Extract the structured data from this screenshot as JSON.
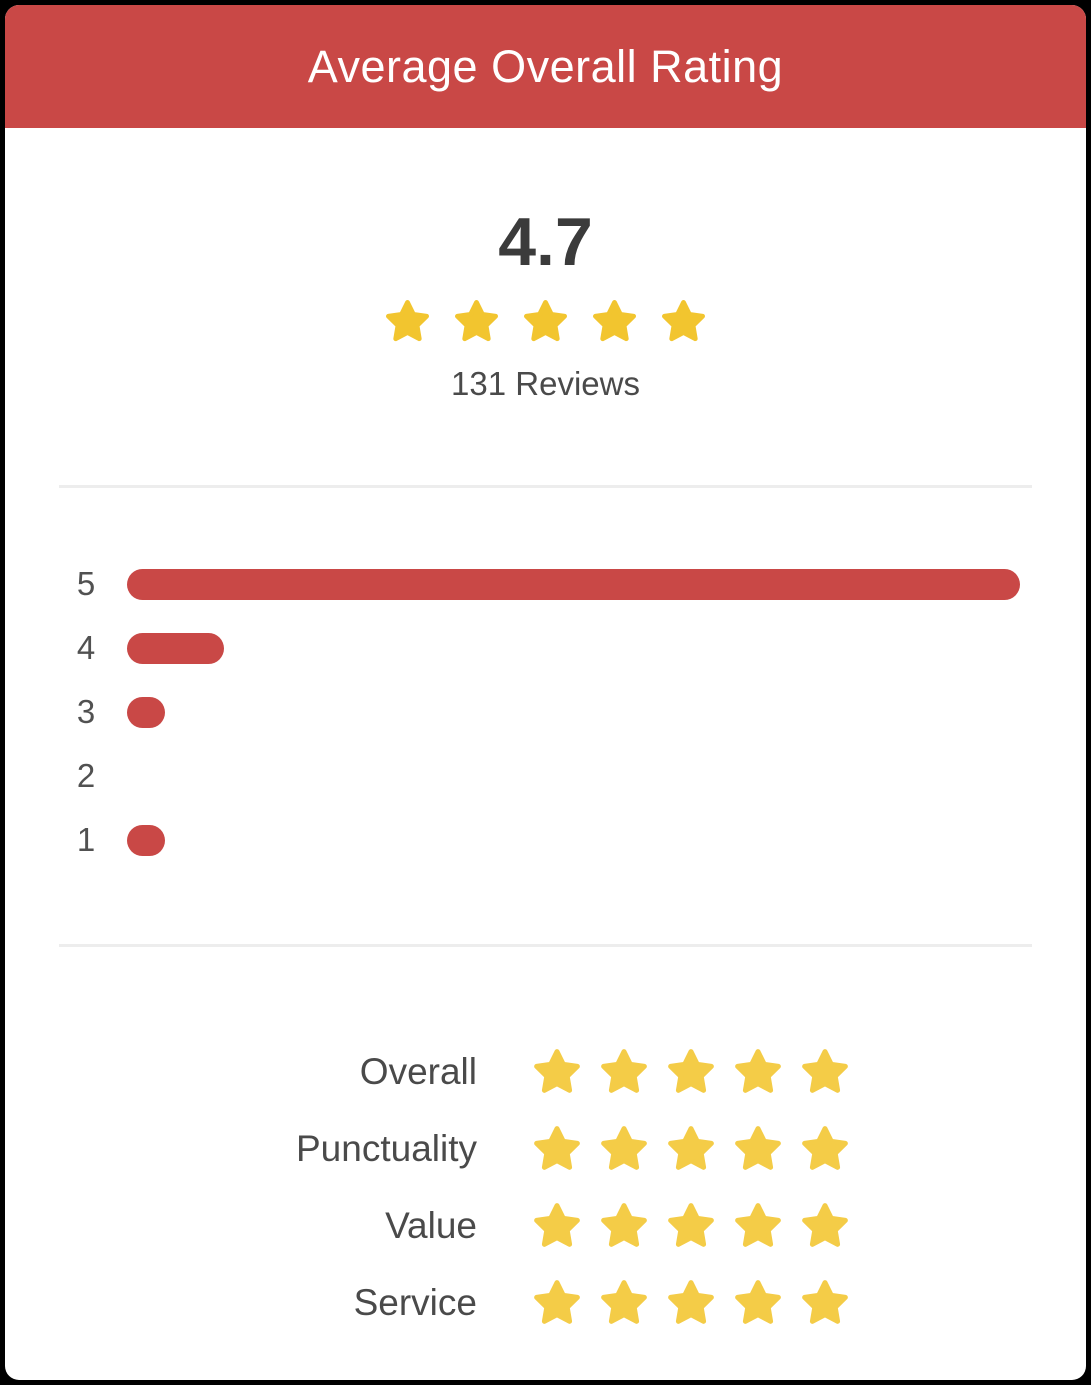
{
  "header": {
    "title": "Average Overall Rating",
    "bg_color": "#C94846",
    "text_color": "#FFFFFF"
  },
  "summary": {
    "average_rating": "4.7",
    "star_count": 5,
    "star_color": "#F2C52F",
    "reviews_label": "131 Reviews"
  },
  "chart_data": {
    "type": "bar",
    "orientation": "horizontal",
    "title": "",
    "xlabel": "",
    "ylabel": "",
    "categories": [
      "5",
      "4",
      "3",
      "2",
      "1"
    ],
    "values": [
      100,
      10.9,
      4.3,
      0,
      4.3
    ],
    "value_unit": "percent_of_longest_bar",
    "bar_color": "#C94846",
    "grid": false,
    "legend": false
  },
  "categories": {
    "star_color": "#F4CC47",
    "items": [
      {
        "label": "Overall",
        "stars": 5
      },
      {
        "label": "Punctuality",
        "stars": 5
      },
      {
        "label": "Value",
        "stars": 5
      },
      {
        "label": "Service",
        "stars": 5
      }
    ]
  }
}
